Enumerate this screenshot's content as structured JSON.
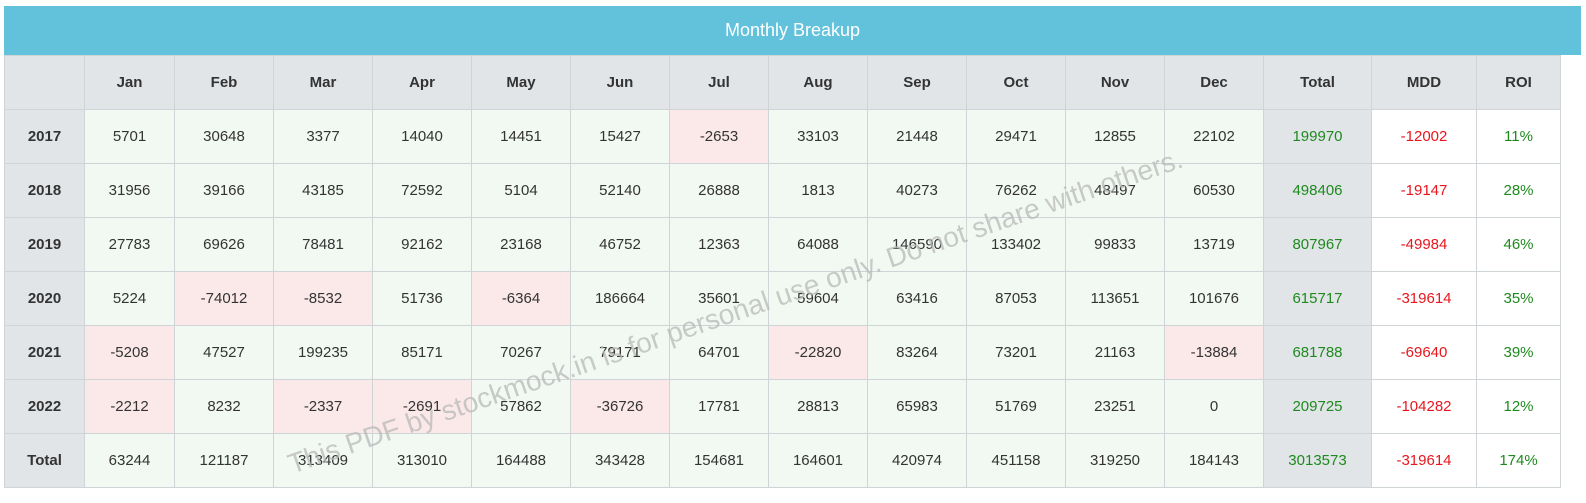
{
  "title": "Monthly Breakup",
  "columns": [
    "",
    "Jan",
    "Feb",
    "Mar",
    "Apr",
    "May",
    "Jun",
    "Jul",
    "Aug",
    "Sep",
    "Oct",
    "Nov",
    "Dec",
    "Total",
    "MDD",
    "ROI"
  ],
  "rows": [
    {
      "label": "2017",
      "months": [
        "5701",
        "30648",
        "3377",
        "14040",
        "14451",
        "15427",
        "-2653",
        "33103",
        "21448",
        "29471",
        "12855",
        "22102"
      ],
      "total": "199970",
      "mdd": "-12002",
      "roi": "11%"
    },
    {
      "label": "2018",
      "months": [
        "31956",
        "39166",
        "43185",
        "72592",
        "5104",
        "52140",
        "26888",
        "1813",
        "40273",
        "76262",
        "48497",
        "60530"
      ],
      "total": "498406",
      "mdd": "-19147",
      "roi": "28%"
    },
    {
      "label": "2019",
      "months": [
        "27783",
        "69626",
        "78481",
        "92162",
        "23168",
        "46752",
        "12363",
        "64088",
        "146590",
        "133402",
        "99833",
        "13719"
      ],
      "total": "807967",
      "mdd": "-49984",
      "roi": "46%"
    },
    {
      "label": "2020",
      "months": [
        "5224",
        "-74012",
        "-8532",
        "51736",
        "-6364",
        "186664",
        "35601",
        "59604",
        "63416",
        "87053",
        "113651",
        "101676"
      ],
      "total": "615717",
      "mdd": "-319614",
      "roi": "35%"
    },
    {
      "label": "2021",
      "months": [
        "-5208",
        "47527",
        "199235",
        "85171",
        "70267",
        "79171",
        "64701",
        "-22820",
        "83264",
        "73201",
        "21163",
        "-13884"
      ],
      "total": "681788",
      "mdd": "-69640",
      "roi": "39%"
    },
    {
      "label": "2022",
      "months": [
        "-2212",
        "8232",
        "-2337",
        "-2691",
        "57862",
        "-36726",
        "17781",
        "28813",
        "65983",
        "51769",
        "23251",
        "0"
      ],
      "total": "209725",
      "mdd": "-104282",
      "roi": "12%"
    },
    {
      "label": "Total",
      "months": [
        "63244",
        "121187",
        "313409",
        "313010",
        "164488",
        "343428",
        "154681",
        "164601",
        "420974",
        "451158",
        "319250",
        "184143"
      ],
      "total": "3013573",
      "mdd": "-319614",
      "roi": "174%"
    }
  ],
  "watermark": "This PDF by stockmock.in is for personal use only. Do not share with others.",
  "colors": {
    "header_bar": "#62c1db",
    "positive_bg": "#f2f9f2",
    "negative_bg": "#fbe9ea",
    "label_bg": "#e1e5e8",
    "green_text": "#1e8a1e",
    "red_text": "#e8161c"
  }
}
